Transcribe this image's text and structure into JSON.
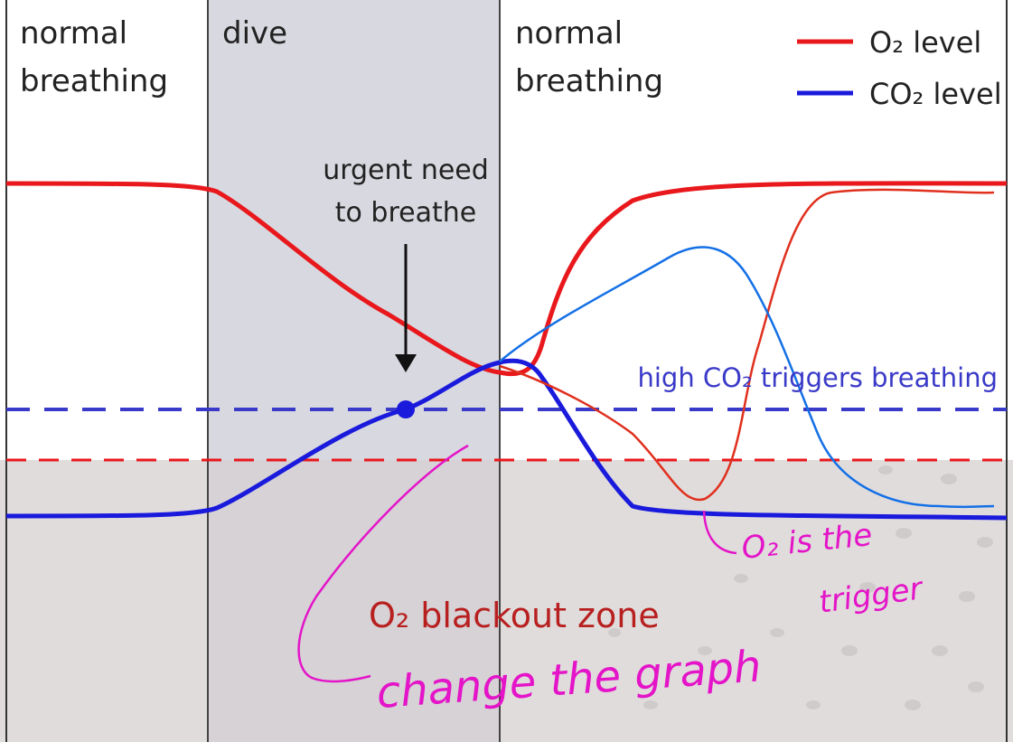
{
  "phases": {
    "left": {
      "line1": "normal",
      "line2": "breathing"
    },
    "dive": "dive",
    "right": {
      "line1": "normal",
      "line2": "breathing"
    }
  },
  "legend": {
    "o2": "O₂ level",
    "co2": "CO₂ level"
  },
  "annotations": {
    "urgent_line1": "urgent need",
    "urgent_line2": "to breathe",
    "co2_threshold": "high CO₂ triggers breathing",
    "blackout_zone": "O₂ blackout zone"
  },
  "handwriting": {
    "note1_line1": "O₂ is the",
    "note1_line2": "trigger",
    "note2": "change the graph"
  },
  "colors": {
    "o2": "#e8181c",
    "co2": "#1a1adc",
    "co2_hand": "#1470e6",
    "o2_hand": "#e0301e",
    "threshold_co2": "#3a3ac8",
    "blackout_text": "#b82020",
    "ink": "#e414c8",
    "dive_shade": "#d8d8e0",
    "zone_shade": "#e0dcdc"
  }
}
